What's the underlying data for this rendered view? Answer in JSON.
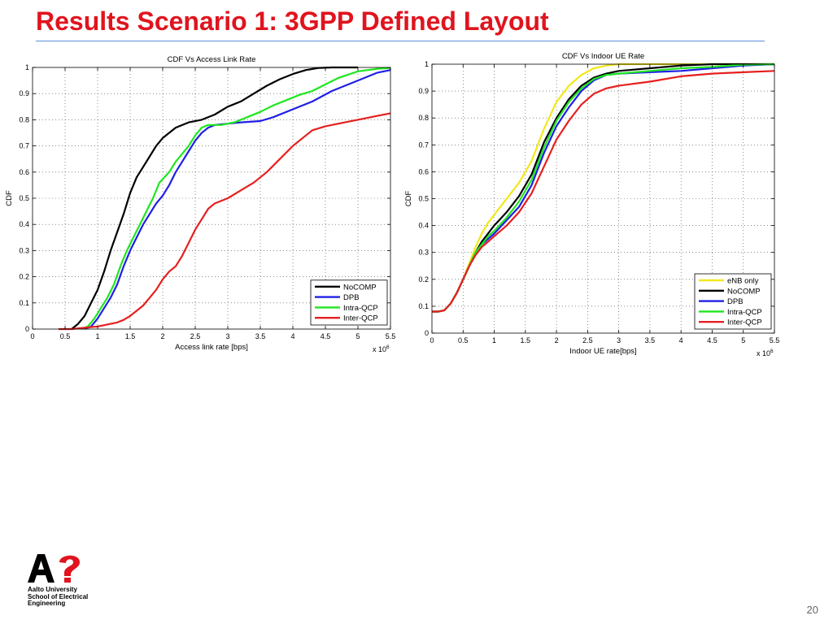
{
  "slide": {
    "title": "Results Scenario 1: 3GPP Defined Layout",
    "page_number": "20",
    "logo": {
      "mark": "A?",
      "lines": [
        "Aalto University",
        "School of Electrical",
        "Engineering"
      ]
    }
  },
  "colors": {
    "title": "#e0141e",
    "rule": "#5b8fd6",
    "NoCOMP": "#000000",
    "DPB": "#1f1fe6",
    "Intra-QCP": "#1fe61f",
    "Inter-QCP": "#e61f1f",
    "eNB only": "#f2e81a"
  },
  "chart_data": [
    {
      "type": "line",
      "title": "CDF Vs Access Link Rate",
      "xlabel": "Access link rate [bps]",
      "ylabel": "CDF",
      "x_multiplier": "x 10^6",
      "xlim": [
        0,
        5.5
      ],
      "ylim": [
        0,
        1
      ],
      "xticks": [
        0,
        0.5,
        1,
        1.5,
        2,
        2.5,
        3,
        3.5,
        4,
        4.5,
        5,
        5.5
      ],
      "yticks": [
        0,
        0.1,
        0.2,
        0.3,
        0.4,
        0.5,
        0.6,
        0.7,
        0.8,
        0.9,
        1
      ],
      "grid": true,
      "legend_position": "bottom-right",
      "series": [
        {
          "name": "NoCOMP",
          "points": [
            [
              0.6,
              0
            ],
            [
              0.7,
              0.02
            ],
            [
              0.8,
              0.05
            ],
            [
              0.9,
              0.1
            ],
            [
              1.0,
              0.15
            ],
            [
              1.1,
              0.22
            ],
            [
              1.2,
              0.3
            ],
            [
              1.3,
              0.37
            ],
            [
              1.4,
              0.44
            ],
            [
              1.5,
              0.52
            ],
            [
              1.6,
              0.58
            ],
            [
              1.7,
              0.62
            ],
            [
              1.8,
              0.66
            ],
            [
              1.9,
              0.7
            ],
            [
              2.0,
              0.73
            ],
            [
              2.2,
              0.77
            ],
            [
              2.4,
              0.79
            ],
            [
              2.6,
              0.8
            ],
            [
              2.8,
              0.82
            ],
            [
              3.0,
              0.85
            ],
            [
              3.2,
              0.87
            ],
            [
              3.4,
              0.9
            ],
            [
              3.6,
              0.93
            ],
            [
              3.8,
              0.955
            ],
            [
              4.0,
              0.975
            ],
            [
              4.2,
              0.99
            ],
            [
              4.4,
              0.998
            ],
            [
              4.6,
              1
            ],
            [
              5.0,
              1
            ]
          ]
        },
        {
          "name": "DPB",
          "points": [
            [
              0.8,
              0
            ],
            [
              0.9,
              0.01
            ],
            [
              1.0,
              0.04
            ],
            [
              1.1,
              0.08
            ],
            [
              1.2,
              0.12
            ],
            [
              1.3,
              0.17
            ],
            [
              1.4,
              0.24
            ],
            [
              1.5,
              0.3
            ],
            [
              1.6,
              0.35
            ],
            [
              1.7,
              0.4
            ],
            [
              1.8,
              0.44
            ],
            [
              1.9,
              0.48
            ],
            [
              2.0,
              0.51
            ],
            [
              2.1,
              0.55
            ],
            [
              2.2,
              0.6
            ],
            [
              2.3,
              0.64
            ],
            [
              2.4,
              0.68
            ],
            [
              2.5,
              0.72
            ],
            [
              2.6,
              0.75
            ],
            [
              2.7,
              0.77
            ],
            [
              2.8,
              0.78
            ],
            [
              3.0,
              0.785
            ],
            [
              3.2,
              0.79
            ],
            [
              3.5,
              0.795
            ],
            [
              3.7,
              0.81
            ],
            [
              4.0,
              0.84
            ],
            [
              4.3,
              0.87
            ],
            [
              4.6,
              0.91
            ],
            [
              5.0,
              0.95
            ],
            [
              5.3,
              0.98
            ],
            [
              5.5,
              0.99
            ]
          ]
        },
        {
          "name": "Intra-QCP",
          "points": [
            [
              0.75,
              0
            ],
            [
              0.85,
              0.01
            ],
            [
              0.95,
              0.04
            ],
            [
              1.05,
              0.08
            ],
            [
              1.15,
              0.12
            ],
            [
              1.25,
              0.17
            ],
            [
              1.35,
              0.24
            ],
            [
              1.45,
              0.3
            ],
            [
              1.55,
              0.35
            ],
            [
              1.65,
              0.4
            ],
            [
              1.75,
              0.45
            ],
            [
              1.85,
              0.5
            ],
            [
              1.95,
              0.56
            ],
            [
              2.1,
              0.6
            ],
            [
              2.2,
              0.64
            ],
            [
              2.3,
              0.67
            ],
            [
              2.4,
              0.7
            ],
            [
              2.5,
              0.74
            ],
            [
              2.6,
              0.77
            ],
            [
              2.7,
              0.78
            ],
            [
              2.9,
              0.78
            ],
            [
              3.1,
              0.79
            ],
            [
              3.3,
              0.81
            ],
            [
              3.5,
              0.83
            ],
            [
              3.7,
              0.855
            ],
            [
              3.9,
              0.875
            ],
            [
              4.1,
              0.895
            ],
            [
              4.3,
              0.91
            ],
            [
              4.5,
              0.935
            ],
            [
              4.7,
              0.96
            ],
            [
              5.0,
              0.985
            ],
            [
              5.3,
              0.995
            ],
            [
              5.5,
              0.998
            ]
          ]
        },
        {
          "name": "Inter-QCP",
          "points": [
            [
              0.4,
              0
            ],
            [
              0.6,
              0
            ],
            [
              0.8,
              0.005
            ],
            [
              1.0,
              0.01
            ],
            [
              1.1,
              0.015
            ],
            [
              1.2,
              0.02
            ],
            [
              1.3,
              0.025
            ],
            [
              1.4,
              0.035
            ],
            [
              1.5,
              0.05
            ],
            [
              1.6,
              0.07
            ],
            [
              1.7,
              0.09
            ],
            [
              1.8,
              0.12
            ],
            [
              1.9,
              0.15
            ],
            [
              2.0,
              0.19
            ],
            [
              2.1,
              0.22
            ],
            [
              2.2,
              0.24
            ],
            [
              2.3,
              0.28
            ],
            [
              2.4,
              0.33
            ],
            [
              2.5,
              0.38
            ],
            [
              2.6,
              0.42
            ],
            [
              2.7,
              0.46
            ],
            [
              2.8,
              0.48
            ],
            [
              3.0,
              0.5
            ],
            [
              3.2,
              0.53
            ],
            [
              3.4,
              0.56
            ],
            [
              3.6,
              0.6
            ],
            [
              3.8,
              0.65
            ],
            [
              4.0,
              0.7
            ],
            [
              4.2,
              0.74
            ],
            [
              4.3,
              0.76
            ],
            [
              4.5,
              0.775
            ],
            [
              4.8,
              0.79
            ],
            [
              5.1,
              0.805
            ],
            [
              5.3,
              0.815
            ],
            [
              5.5,
              0.825
            ]
          ]
        }
      ]
    },
    {
      "type": "line",
      "title": "CDF Vs Indoor UE Rate",
      "xlabel": "Indoor UE rate[bps]",
      "ylabel": "CDF",
      "x_multiplier": "x 10^6",
      "xlim": [
        0,
        5.5
      ],
      "ylim": [
        0,
        1
      ],
      "xticks": [
        0,
        0.5,
        1,
        1.5,
        2,
        2.5,
        3,
        3.5,
        4,
        4.5,
        5,
        5.5
      ],
      "yticks": [
        0,
        0.1,
        0.2,
        0.3,
        0.4,
        0.5,
        0.6,
        0.7,
        0.8,
        0.9,
        1
      ],
      "grid": true,
      "legend_position": "bottom-right",
      "series": [
        {
          "name": "eNB only",
          "points": [
            [
              0,
              0.08
            ],
            [
              0.1,
              0.08
            ],
            [
              0.2,
              0.085
            ],
            [
              0.3,
              0.11
            ],
            [
              0.4,
              0.15
            ],
            [
              0.5,
              0.2
            ],
            [
              0.6,
              0.26
            ],
            [
              0.7,
              0.32
            ],
            [
              0.8,
              0.37
            ],
            [
              0.9,
              0.41
            ],
            [
              1.0,
              0.44
            ],
            [
              1.2,
              0.5
            ],
            [
              1.4,
              0.56
            ],
            [
              1.6,
              0.64
            ],
            [
              1.8,
              0.76
            ],
            [
              2.0,
              0.86
            ],
            [
              2.2,
              0.92
            ],
            [
              2.4,
              0.96
            ],
            [
              2.6,
              0.985
            ],
            [
              2.8,
              0.995
            ],
            [
              3.0,
              1
            ],
            [
              5.5,
              1
            ]
          ]
        },
        {
          "name": "NoCOMP",
          "points": [
            [
              0,
              0.08
            ],
            [
              0.1,
              0.08
            ],
            [
              0.2,
              0.085
            ],
            [
              0.3,
              0.11
            ],
            [
              0.4,
              0.15
            ],
            [
              0.5,
              0.2
            ],
            [
              0.6,
              0.25
            ],
            [
              0.7,
              0.3
            ],
            [
              0.8,
              0.34
            ],
            [
              0.9,
              0.37
            ],
            [
              1.0,
              0.4
            ],
            [
              1.2,
              0.45
            ],
            [
              1.4,
              0.51
            ],
            [
              1.6,
              0.59
            ],
            [
              1.8,
              0.71
            ],
            [
              2.0,
              0.8
            ],
            [
              2.2,
              0.87
            ],
            [
              2.4,
              0.92
            ],
            [
              2.6,
              0.95
            ],
            [
              2.8,
              0.965
            ],
            [
              3.0,
              0.975
            ],
            [
              3.5,
              0.985
            ],
            [
              4.0,
              0.995
            ],
            [
              4.5,
              1
            ],
            [
              5.5,
              1
            ]
          ]
        },
        {
          "name": "DPB",
          "points": [
            [
              0,
              0.08
            ],
            [
              0.1,
              0.08
            ],
            [
              0.2,
              0.085
            ],
            [
              0.3,
              0.11
            ],
            [
              0.4,
              0.15
            ],
            [
              0.5,
              0.2
            ],
            [
              0.6,
              0.25
            ],
            [
              0.7,
              0.3
            ],
            [
              0.8,
              0.33
            ],
            [
              0.9,
              0.35
            ],
            [
              1.0,
              0.37
            ],
            [
              1.2,
              0.42
            ],
            [
              1.4,
              0.47
            ],
            [
              1.6,
              0.55
            ],
            [
              1.8,
              0.67
            ],
            [
              2.0,
              0.77
            ],
            [
              2.2,
              0.84
            ],
            [
              2.4,
              0.9
            ],
            [
              2.6,
              0.94
            ],
            [
              2.8,
              0.96
            ],
            [
              3.0,
              0.965
            ],
            [
              3.5,
              0.97
            ],
            [
              4.0,
              0.975
            ],
            [
              4.5,
              0.985
            ],
            [
              5.0,
              0.995
            ],
            [
              5.5,
              1
            ]
          ]
        },
        {
          "name": "Intra-QCP",
          "points": [
            [
              0,
              0.08
            ],
            [
              0.1,
              0.08
            ],
            [
              0.2,
              0.085
            ],
            [
              0.3,
              0.11
            ],
            [
              0.4,
              0.15
            ],
            [
              0.5,
              0.2
            ],
            [
              0.6,
              0.25
            ],
            [
              0.7,
              0.3
            ],
            [
              0.8,
              0.33
            ],
            [
              0.9,
              0.36
            ],
            [
              1.0,
              0.38
            ],
            [
              1.2,
              0.43
            ],
            [
              1.4,
              0.49
            ],
            [
              1.6,
              0.57
            ],
            [
              1.8,
              0.69
            ],
            [
              2.0,
              0.79
            ],
            [
              2.2,
              0.86
            ],
            [
              2.4,
              0.91
            ],
            [
              2.6,
              0.945
            ],
            [
              2.8,
              0.96
            ],
            [
              3.0,
              0.965
            ],
            [
              3.5,
              0.975
            ],
            [
              4.0,
              0.985
            ],
            [
              4.5,
              0.99
            ],
            [
              5.0,
              0.998
            ],
            [
              5.5,
              1
            ]
          ]
        },
        {
          "name": "Inter-QCP",
          "points": [
            [
              0,
              0.08
            ],
            [
              0.1,
              0.08
            ],
            [
              0.2,
              0.085
            ],
            [
              0.3,
              0.11
            ],
            [
              0.4,
              0.15
            ],
            [
              0.5,
              0.2
            ],
            [
              0.6,
              0.25
            ],
            [
              0.7,
              0.29
            ],
            [
              0.8,
              0.32
            ],
            [
              0.9,
              0.34
            ],
            [
              1.0,
              0.36
            ],
            [
              1.2,
              0.4
            ],
            [
              1.4,
              0.45
            ],
            [
              1.6,
              0.52
            ],
            [
              1.8,
              0.62
            ],
            [
              2.0,
              0.72
            ],
            [
              2.2,
              0.79
            ],
            [
              2.4,
              0.85
            ],
            [
              2.6,
              0.89
            ],
            [
              2.8,
              0.91
            ],
            [
              3.0,
              0.92
            ],
            [
              3.5,
              0.935
            ],
            [
              4.0,
              0.955
            ],
            [
              4.5,
              0.965
            ],
            [
              5.0,
              0.97
            ],
            [
              5.5,
              0.975
            ]
          ]
        }
      ]
    }
  ]
}
